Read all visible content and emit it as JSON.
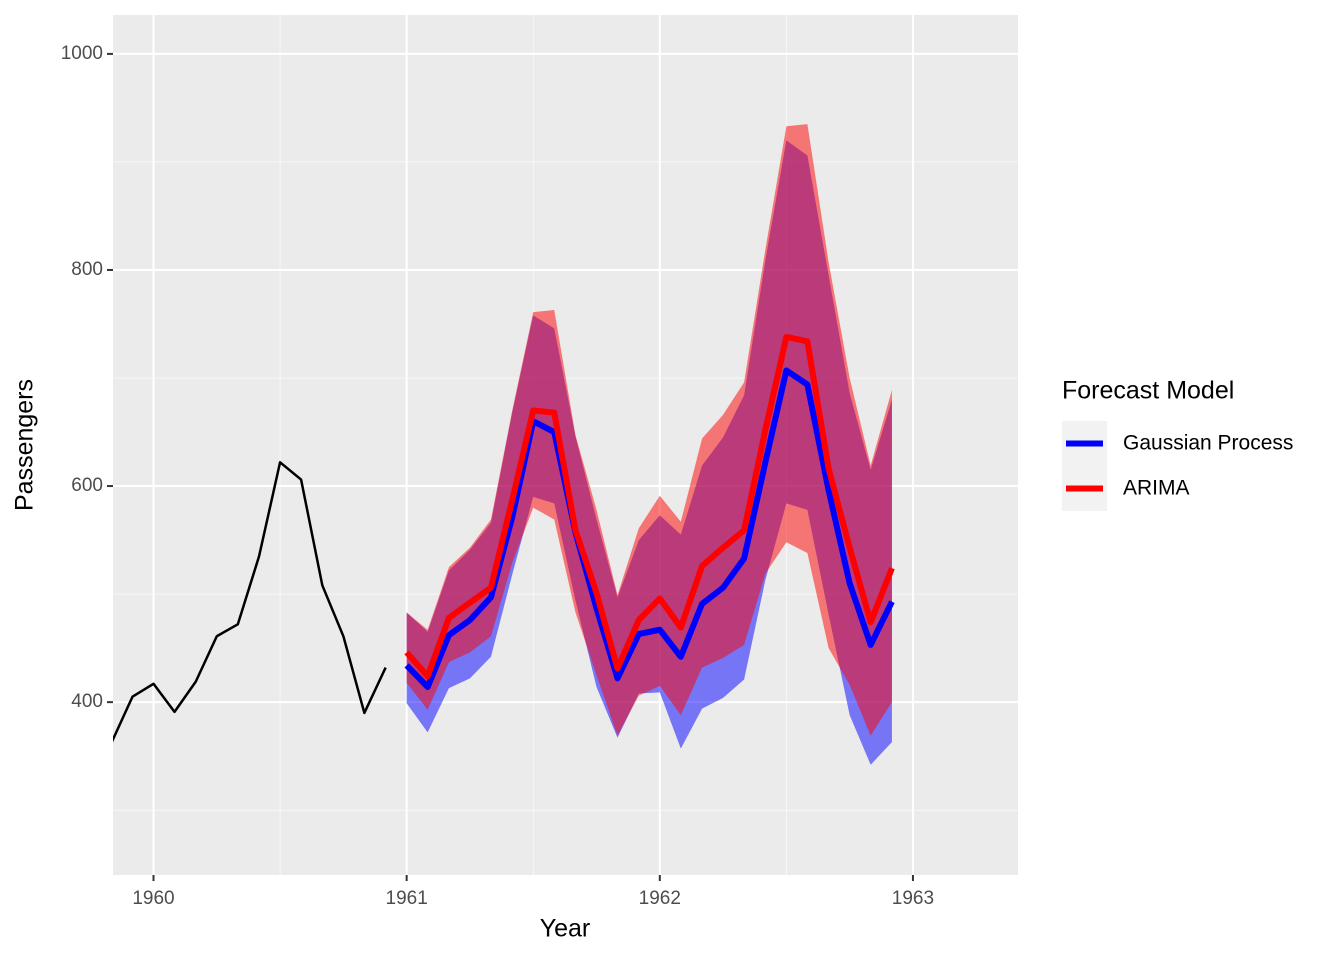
{
  "chart_data": {
    "type": "line",
    "x_label": "Year",
    "y_label": "Passengers",
    "xlim": [
      1959.84,
      1963.415
    ],
    "ylim": [
      240,
      1036
    ],
    "xticks": [
      1960,
      1961,
      1962,
      1963
    ],
    "yticks": [
      400,
      600,
      800,
      1000
    ],
    "grid": true,
    "legend_title": "Forecast Model",
    "legend": "right",
    "series": [
      {
        "color": "#000000",
        "x": [
          1959.833,
          1959.917,
          1960,
          1960.083,
          1960.167,
          1960.25,
          1960.333,
          1960.417,
          1960.5,
          1960.583,
          1960.667,
          1960.75,
          1960.833,
          1960.917
        ],
        "values": [
          362,
          405,
          417,
          391,
          419,
          461,
          472,
          535,
          622,
          606,
          508,
          461,
          390,
          432
        ]
      },
      {
        "name": "Gaussian Process",
        "color": "#0000ff",
        "x": [
          1961,
          1961.083,
          1961.167,
          1961.25,
          1961.333,
          1961.417,
          1961.5,
          1961.583,
          1961.667,
          1961.75,
          1961.833,
          1961.917,
          1962,
          1962.083,
          1962.167,
          1962.25,
          1962.333,
          1962.417,
          1962.5,
          1962.583,
          1962.667,
          1962.75,
          1962.833,
          1962.917
        ],
        "values": [
          434,
          414,
          462,
          476,
          497,
          571,
          660,
          650,
          557,
          487,
          422,
          463,
          467,
          442,
          491,
          506,
          533,
          622,
          707,
          694,
          596,
          510,
          453,
          493
        ],
        "lower": [
          399,
          372,
          413,
          422,
          442,
          518,
          590,
          584,
          494,
          414,
          367,
          408,
          409,
          357,
          394,
          404,
          421,
          513,
          584,
          578,
          481,
          388,
          342,
          363
        ],
        "upper": [
          483,
          465,
          522,
          541,
          566,
          668,
          758,
          746,
          646,
          569,
          497,
          550,
          573,
          555,
          619,
          645,
          684,
          809,
          920,
          906,
          795,
          686,
          615,
          680
        ]
      },
      {
        "name": "ARIMA",
        "color": "#ff0000",
        "x": [
          1961,
          1961.083,
          1961.167,
          1961.25,
          1961.333,
          1961.417,
          1961.5,
          1961.583,
          1961.667,
          1961.75,
          1961.833,
          1961.917,
          1962,
          1962.083,
          1962.167,
          1962.25,
          1962.333,
          1962.417,
          1962.5,
          1962.583,
          1962.667,
          1962.75,
          1962.833,
          1962.917
        ],
        "values": [
          446,
          424,
          478,
          492,
          506,
          587,
          670,
          668,
          559,
          501,
          431,
          476,
          496,
          469,
          526,
          543,
          559,
          652,
          738,
          734,
          616,
          543,
          474,
          524
        ],
        "lower": [
          418,
          393,
          437,
          446,
          461,
          529,
          580,
          569,
          483,
          425,
          369,
          406,
          415,
          388,
          432,
          441,
          453,
          519,
          548,
          538,
          450,
          416,
          369,
          400
        ],
        "upper": [
          483,
          467,
          525,
          543,
          569,
          670,
          761,
          763,
          647,
          578,
          499,
          561,
          591,
          567,
          644,
          666,
          696,
          819,
          933,
          935,
          807,
          700,
          619,
          689
        ]
      }
    ]
  }
}
